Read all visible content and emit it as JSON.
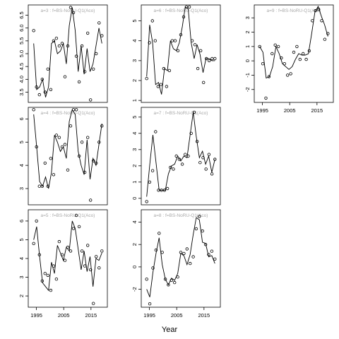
{
  "figure": {
    "xlabel": "Year",
    "background": "#ffffff",
    "title_color": "#a8a8a8",
    "line_color": "#000000"
  },
  "chart_data": [
    {
      "type": "line",
      "row": 0,
      "col": 0,
      "title": "a=3 : f=BS-NoRU-Q1(Aco)",
      "years_range": [
        1994,
        2019
      ],
      "xlim": [
        1992,
        2021
      ],
      "ylim": [
        3.1,
        6.9
      ],
      "yticks": [
        3.5,
        4.0,
        4.5,
        5.0,
        5.5,
        6.0,
        6.5
      ],
      "ytick_labels": [
        "3.5",
        "4.0",
        "4.5",
        "5.0",
        "5.5",
        "6.0",
        "6.5"
      ],
      "xticks": [],
      "xtick_labels": [],
      "fitted": [
        5.4,
        3.6,
        3.7,
        4.0,
        3.3,
        3.7,
        5.4,
        5.5,
        5.0,
        5.1,
        5.4,
        4.6,
        6.1,
        6.8,
        5.9,
        4.3,
        5.3,
        4.2,
        5.2,
        4.3,
        4.6,
        5.3,
        6.0,
        5.4
      ],
      "observed": [
        5.9,
        3.7,
        3.4,
        4.0,
        3.5,
        4.4,
        3.6,
        5.5,
        5.6,
        5.3,
        5.4,
        4.1,
        5.3,
        6.8,
        6.6,
        4.9,
        3.9,
        5.3,
        4.3,
        5.8,
        3.2,
        4.4,
        5.0,
        6.2,
        5.7
      ]
    },
    {
      "type": "line",
      "row": 1,
      "col": 0,
      "title": "a=4 : f=BS-NoRU-Q1(Aco)",
      "years_range": [
        1994,
        2019
      ],
      "xlim": [
        1992,
        2021
      ],
      "ylim": [
        2.3,
        6.5
      ],
      "yticks": [
        3,
        4,
        5,
        6
      ],
      "ytick_labels": [
        "3",
        "4",
        "5",
        "6"
      ],
      "xticks": [],
      "xtick_labels": [],
      "fitted": [
        6.2,
        4.8,
        3.3,
        3.1,
        3.5,
        3.0,
        3.7,
        5.3,
        5.0,
        4.6,
        4.8,
        4.3,
        5.9,
        6.4,
        6.2,
        4.6,
        4.0,
        3.6,
        5.1,
        3.4,
        4.3,
        4.0,
        4.9,
        5.8
      ],
      "observed": [
        6.4,
        4.8,
        3.1,
        3.1,
        4.1,
        3.1,
        4.3,
        3.6,
        5.3,
        5.2,
        4.8,
        4.9,
        3.8,
        5.7,
        6.4,
        6.4,
        4.4,
        5.0,
        3.7,
        5.2,
        2.5,
        4.2,
        4.1,
        5.0,
        5.7
      ]
    },
    {
      "type": "line",
      "row": 2,
      "col": 0,
      "title": "a=5 : f=BS-NoRU-Q1(Aco)",
      "years_range": [
        1994,
        2019
      ],
      "xlim": [
        1992,
        2021
      ],
      "ylim": [
        1.4,
        6.6
      ],
      "yticks": [
        2,
        3,
        4,
        5,
        6
      ],
      "ytick_labels": [
        "2",
        "3",
        "4",
        "5",
        "6"
      ],
      "xticks": [
        1995,
        2005,
        2015
      ],
      "xtick_labels": [
        "1995",
        "2005",
        "2015"
      ],
      "fitted": [
        5.0,
        5.7,
        4.1,
        2.7,
        2.5,
        2.3,
        3.8,
        3.2,
        4.7,
        4.3,
        3.9,
        4.6,
        4.4,
        6.0,
        5.6,
        4.5,
        3.4,
        4.4,
        3.3,
        4.1,
        2.5,
        4.0,
        3.9,
        4.3
      ],
      "observed": [
        4.8,
        6.0,
        4.2,
        2.8,
        3.2,
        3.1,
        2.3,
        3.6,
        2.9,
        4.9,
        4.2,
        3.9,
        4.6,
        4.4,
        5.6,
        6.3,
        5.7,
        4.4,
        3.6,
        4.7,
        3.4,
        1.6,
        4.1,
        3.5,
        4.4
      ]
    },
    {
      "type": "line",
      "row": 0,
      "col": 1,
      "title": "a=6 : f=BS-NoRU-Q1(Aco)",
      "years_range": [
        1994,
        2019
      ],
      "xlim": [
        1992,
        2021
      ],
      "ylim": [
        0.9,
        5.8
      ],
      "yticks": [
        1,
        2,
        3,
        4,
        5
      ],
      "ytick_labels": [
        "1",
        "2",
        "3",
        "4",
        "5"
      ],
      "xticks": [],
      "xtick_labels": [],
      "fitted": [
        2.2,
        4.8,
        3.9,
        1.8,
        1.9,
        1.3,
        2.6,
        2.5,
        4.0,
        3.6,
        3.5,
        3.9,
        4.7,
        5.7,
        5.6,
        3.9,
        3.1,
        3.8,
        3.3,
        2.4,
        3.1,
        3.1,
        3.0,
        3.0
      ],
      "observed": [
        2.1,
        3.9,
        5.0,
        4.0,
        1.7,
        1.8,
        2.6,
        1.7,
        2.5,
        4.0,
        4.0,
        3.5,
        4.3,
        5.2,
        5.7,
        5.7,
        4.0,
        3.8,
        2.6,
        3.5,
        1.9,
        3.1,
        3.0,
        3.1,
        3.1
      ]
    },
    {
      "type": "line",
      "row": 1,
      "col": 1,
      "title": "a=7 : f=BS-NoRU-Q1(Aco)",
      "years_range": [
        1994,
        2019
      ],
      "xlim": [
        1992,
        2021
      ],
      "ylim": [
        -0.4,
        5.6
      ],
      "yticks": [
        0,
        1,
        2,
        3,
        4,
        5
      ],
      "ytick_labels": [
        "0",
        "1",
        "2",
        "3",
        "4",
        "5"
      ],
      "xticks": [],
      "xtick_labels": [],
      "fitted": [
        0.1,
        2.1,
        3.9,
        2.2,
        0.5,
        0.5,
        0.5,
        1.5,
        2.0,
        2.1,
        2.6,
        2.3,
        2.6,
        2.5,
        3.9,
        5.3,
        3.8,
        2.5,
        2.9,
        2.1,
        2.6,
        1.6,
        2.4
      ],
      "observed": [
        -0.2,
        1.0,
        1.7,
        4.1,
        0.5,
        0.5,
        0.5,
        0.6,
        1.9,
        1.8,
        2.6,
        2.4,
        2.1,
        2.7,
        2.6,
        4.0,
        5.3,
        3.5,
        2.2,
        2.5,
        1.8,
        2.7,
        1.5,
        2.4
      ]
    },
    {
      "type": "line",
      "row": 2,
      "col": 1,
      "title": "a=8 : f=BS-NoRU-Q1(Aco)",
      "years_range": [
        1994,
        2019
      ],
      "xlim": [
        1992,
        2021
      ],
      "ylim": [
        -3.6,
        5.1
      ],
      "yticks": [
        -2,
        0,
        2,
        4
      ],
      "ytick_labels": [
        "-2",
        "0",
        "2",
        "4"
      ],
      "xticks": [
        1995,
        2005,
        2015
      ],
      "xtick_labels": [
        "1995",
        "2005",
        "2015"
      ],
      "fitted": [
        -2.0,
        -2.7,
        -0.5,
        1.2,
        2.6,
        0.2,
        -1.1,
        -1.6,
        -1.0,
        -1.2,
        -0.6,
        1.2,
        1.0,
        0.2,
        1.1,
        2.9,
        4.4,
        4.2,
        2.2,
        2.1,
        0.9,
        1.0,
        0.3
      ],
      "observed": [
        -1.1,
        -3.3,
        -0.1,
        1.5,
        3.0,
        1.3,
        -1.1,
        -1.6,
        -1.2,
        -1.4,
        -0.9,
        1.3,
        1.2,
        1.6,
        0.3,
        0.9,
        3.4,
        4.5,
        3.2,
        2.0,
        1.1,
        1.4,
        0.7
      ]
    },
    {
      "type": "line",
      "row": 0,
      "col": 2,
      "title": "a=9 : f=BS-NoRU-Q1(Aco)",
      "years_range": [
        1994,
        2019
      ],
      "xlim": [
        1992,
        2021
      ],
      "ylim": [
        -2.9,
        3.9
      ],
      "yticks": [
        -2,
        -1,
        0,
        1,
        2,
        3
      ],
      "ytick_labels": [
        "-2",
        "-1",
        "0",
        "1",
        "2",
        "3"
      ],
      "xticks": [
        1995,
        2005,
        2015
      ],
      "xtick_labels": [
        "1995",
        "2005",
        "2015"
      ],
      "fitted": [
        1.0,
        0.6,
        -1.2,
        -1.1,
        -0.4,
        1.0,
        0.5,
        -0.2,
        -0.4,
        -0.6,
        -0.4,
        0.1,
        0.5,
        0.4,
        0.4,
        0.5,
        1.9,
        3.4,
        3.8,
        3.1,
        2.5,
        1.7
      ],
      "observed": [
        1.0,
        -0.2,
        -2.6,
        -1.1,
        0.5,
        1.1,
        1.0,
        0.2,
        -0.2,
        -1.0,
        -0.9,
        0.6,
        1.0,
        0.1,
        0.5,
        0.1,
        0.7,
        2.8,
        3.5,
        3.6,
        2.8,
        1.5,
        1.9
      ]
    }
  ]
}
